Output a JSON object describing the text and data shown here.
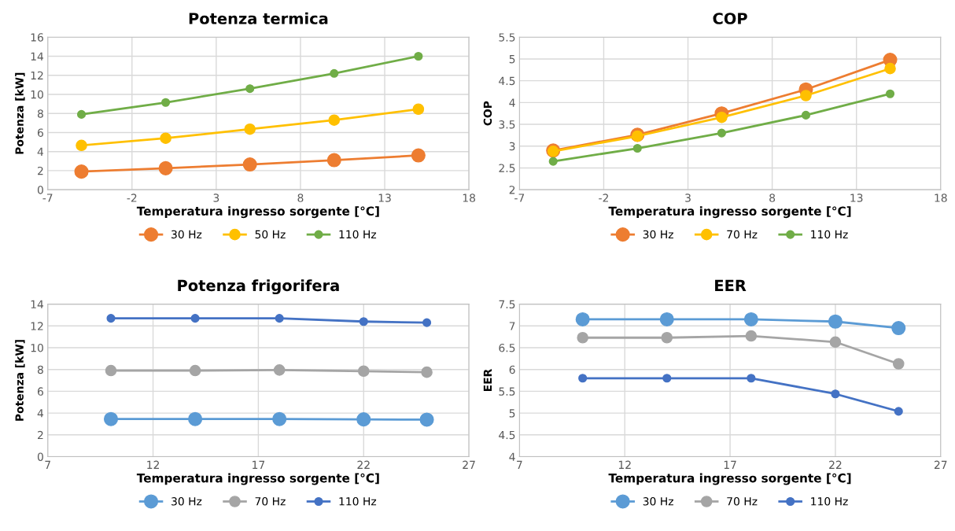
{
  "chart_data": [
    {
      "type": "line",
      "title": "Potenza termica",
      "xlabel": "Temperatura ingresso sorgente [°C]",
      "ylabel": "Potenza [kW]",
      "x": [
        -5,
        0,
        5,
        10,
        15
      ],
      "xlim": [
        -7,
        18
      ],
      "xticks": [
        -7,
        -2,
        3,
        8,
        13,
        18
      ],
      "ylim": [
        0,
        16
      ],
      "yticks": [
        0,
        2,
        4,
        6,
        8,
        10,
        12,
        14,
        16
      ],
      "grid": true,
      "legend": "bottom",
      "marker": "circle",
      "line_style": "solid",
      "series": [
        {
          "name": "30 Hz",
          "color": "#ed7d31",
          "values": [
            1.9,
            2.25,
            2.65,
            3.1,
            3.6
          ]
        },
        {
          "name": "50 Hz",
          "color": "#ffc000",
          "values": [
            4.65,
            5.4,
            6.35,
            7.3,
            8.45
          ]
        },
        {
          "name": "110 Hz",
          "color": "#70ad47",
          "values": [
            7.9,
            9.15,
            10.6,
            12.2,
            14.0
          ]
        }
      ]
    },
    {
      "type": "line",
      "title": "COP",
      "xlabel": "Temperatura ingresso sorgente [°C]",
      "ylabel": "COP",
      "x": [
        -5,
        0,
        5,
        10,
        15
      ],
      "xlim": [
        -7,
        18
      ],
      "xticks": [
        -7,
        -2,
        3,
        8,
        13,
        18
      ],
      "ylim": [
        2,
        5.5
      ],
      "yticks": [
        2,
        2.5,
        3,
        3.5,
        4,
        4.5,
        5,
        5.5
      ],
      "grid": true,
      "legend": "bottom",
      "marker": "circle",
      "line_style": "solid",
      "series": [
        {
          "name": "30 Hz",
          "color": "#ed7d31",
          "values": [
            2.9,
            3.26,
            3.75,
            4.3,
            4.98
          ]
        },
        {
          "name": "70 Hz",
          "color": "#ffc000",
          "values": [
            2.88,
            3.23,
            3.66,
            4.16,
            4.78
          ]
        },
        {
          "name": "110 Hz",
          "color": "#70ad47",
          "values": [
            2.65,
            2.95,
            3.3,
            3.71,
            4.2
          ]
        }
      ]
    },
    {
      "type": "line",
      "title": "Potenza frigorifera",
      "xlabel": "Temperatura ingresso sorgente [°C]",
      "ylabel": "Potenza [kW]",
      "x": [
        10,
        14,
        18,
        22,
        25
      ],
      "xlim": [
        7,
        27
      ],
      "xticks": [
        7,
        12,
        17,
        22,
        27
      ],
      "ylim": [
        0,
        14
      ],
      "yticks": [
        0,
        2,
        4,
        6,
        8,
        10,
        12,
        14
      ],
      "grid": true,
      "legend": "bottom",
      "marker": "circle",
      "line_style": "solid",
      "series": [
        {
          "name": "30 Hz",
          "color": "#5b9bd5",
          "values": [
            3.45,
            3.45,
            3.45,
            3.42,
            3.4
          ]
        },
        {
          "name": "70 Hz",
          "color": "#a5a5a5",
          "values": [
            7.9,
            7.9,
            7.95,
            7.85,
            7.75
          ]
        },
        {
          "name": "110 Hz",
          "color": "#4472c4",
          "values": [
            12.7,
            12.7,
            12.7,
            12.4,
            12.3
          ]
        }
      ]
    },
    {
      "type": "line",
      "title": "EER",
      "xlabel": "Temperatura ingresso sorgente [°C]",
      "ylabel": "EER",
      "x": [
        10,
        14,
        18,
        22,
        25
      ],
      "xlim": [
        7,
        27
      ],
      "xticks": [
        7,
        12,
        17,
        22,
        27
      ],
      "ylim": [
        4,
        7.5
      ],
      "yticks": [
        4,
        4.5,
        5,
        5.5,
        6,
        6.5,
        7,
        7.5
      ],
      "grid": true,
      "legend": "bottom",
      "marker": "circle",
      "line_style": "solid",
      "series": [
        {
          "name": "30 Hz",
          "color": "#5b9bd5",
          "values": [
            7.15,
            7.15,
            7.15,
            7.1,
            6.95
          ]
        },
        {
          "name": "70 Hz",
          "color": "#a5a5a5",
          "values": [
            6.73,
            6.73,
            6.77,
            6.63,
            6.13
          ]
        },
        {
          "name": "110 Hz",
          "color": "#4472c4",
          "values": [
            5.8,
            5.8,
            5.8,
            5.44,
            5.04
          ]
        }
      ]
    }
  ]
}
